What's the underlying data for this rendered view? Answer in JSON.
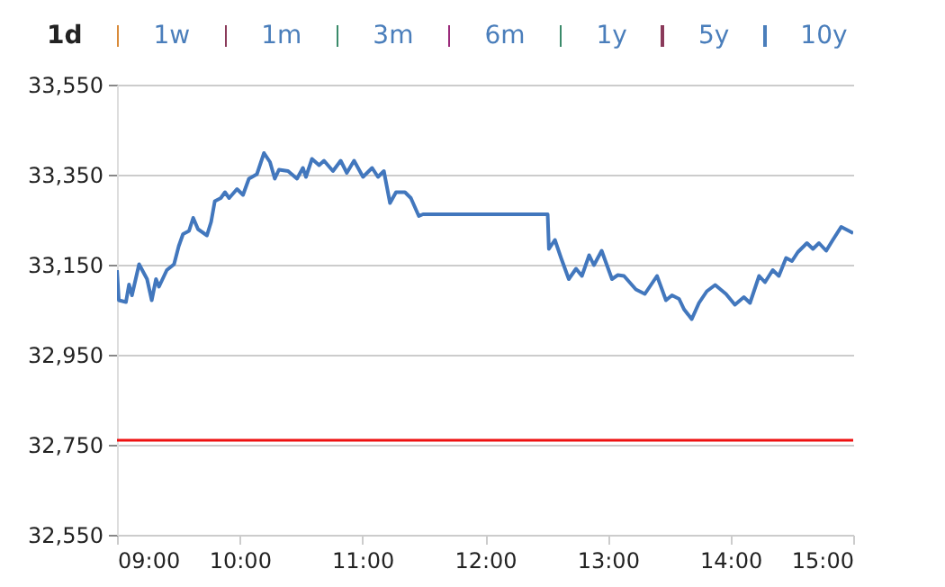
{
  "chart_data": {
    "type": "line",
    "annotations": [
      "1d",
      "1w",
      "1m",
      "3m",
      "6m",
      "1y",
      "5y",
      "10y"
    ],
    "x": [
      9.0,
      9.015,
      9.073,
      9.098,
      9.122,
      9.18,
      9.245,
      9.283,
      9.318,
      9.342,
      9.406,
      9.465,
      9.503,
      9.538,
      9.587,
      9.621,
      9.66,
      9.733,
      9.767,
      9.797,
      9.846,
      9.88,
      9.914,
      9.978,
      10.027,
      10.075,
      10.14,
      10.198,
      10.247,
      10.286,
      10.32,
      10.394,
      10.467,
      10.515,
      10.54,
      10.589,
      10.647,
      10.687,
      10.76,
      10.823,
      10.873,
      10.932,
      11.005,
      11.079,
      11.127,
      11.175,
      11.225,
      11.274,
      11.347,
      11.395,
      11.46,
      11.494,
      12.51,
      12.52,
      12.569,
      12.619,
      12.682,
      12.741,
      12.789,
      12.848,
      12.887,
      12.95,
      13.034,
      13.082,
      13.132,
      13.229,
      13.302,
      13.401,
      13.474,
      13.523,
      13.581,
      13.621,
      13.684,
      13.743,
      13.807,
      13.875,
      13.963,
      14.036,
      14.109,
      14.159,
      14.233,
      14.281,
      14.344,
      14.394,
      14.453,
      14.501,
      14.549,
      14.623,
      14.672,
      14.721,
      14.78,
      14.834,
      14.902,
      14.966,
      15.0
    ],
    "series": [
      {
        "color": "#4277bd",
        "values": [
          33138,
          33071,
          33067,
          33106,
          33082,
          33151,
          33118,
          33071,
          33118,
          33101,
          33138,
          33151,
          33191,
          33218,
          33225,
          33254,
          33229,
          33215,
          33245,
          33291,
          33298,
          33311,
          33298,
          33318,
          33305,
          33341,
          33351,
          33398,
          33378,
          33341,
          33361,
          33358,
          33341,
          33365,
          33345,
          33385,
          33371,
          33381,
          33358,
          33381,
          33354,
          33381,
          33345,
          33365,
          33345,
          33358,
          33287,
          33311,
          33311,
          33298,
          33258,
          33262,
          33262,
          33185,
          33205,
          33165,
          33118,
          33141,
          33125,
          33171,
          33149,
          33181,
          33118,
          33127,
          33125,
          33095,
          33085,
          33125,
          33071,
          33082,
          33074,
          33051,
          33029,
          33065,
          33091,
          33105,
          33085,
          33061,
          33078,
          33065,
          33125,
          33111,
          33138,
          33125,
          33165,
          33158,
          33178,
          33198,
          33185,
          33198,
          33181,
          33205,
          33234,
          33225,
          33220
        ]
      }
    ],
    "xlim": [
      9,
      15
    ],
    "xticks": [
      {
        "value": 9,
        "label": "09:00"
      },
      {
        "value": 10,
        "label": "10:00"
      },
      {
        "value": 11,
        "label": "11:00"
      },
      {
        "value": 12,
        "label": "12:00"
      },
      {
        "value": 13,
        "label": "13:00"
      },
      {
        "value": 14,
        "label": "14:00"
      },
      {
        "value": 15,
        "label": "15:00"
      }
    ],
    "ylim": [
      32550,
      33550
    ],
    "yticks": [
      {
        "value": 32550,
        "label": "32,550"
      },
      {
        "value": 32750,
        "label": "32,750"
      },
      {
        "value": 32950,
        "label": "32,950"
      },
      {
        "value": 33150,
        "label": "33,150"
      },
      {
        "value": 33350,
        "label": "33,350"
      },
      {
        "value": 33550,
        "label": "33,550"
      }
    ],
    "ref_lines": [
      {
        "axis": "y",
        "value": 32760,
        "color": "#ee1111"
      }
    ],
    "grid": "y",
    "marker": "none",
    "line_style": "solid"
  }
}
